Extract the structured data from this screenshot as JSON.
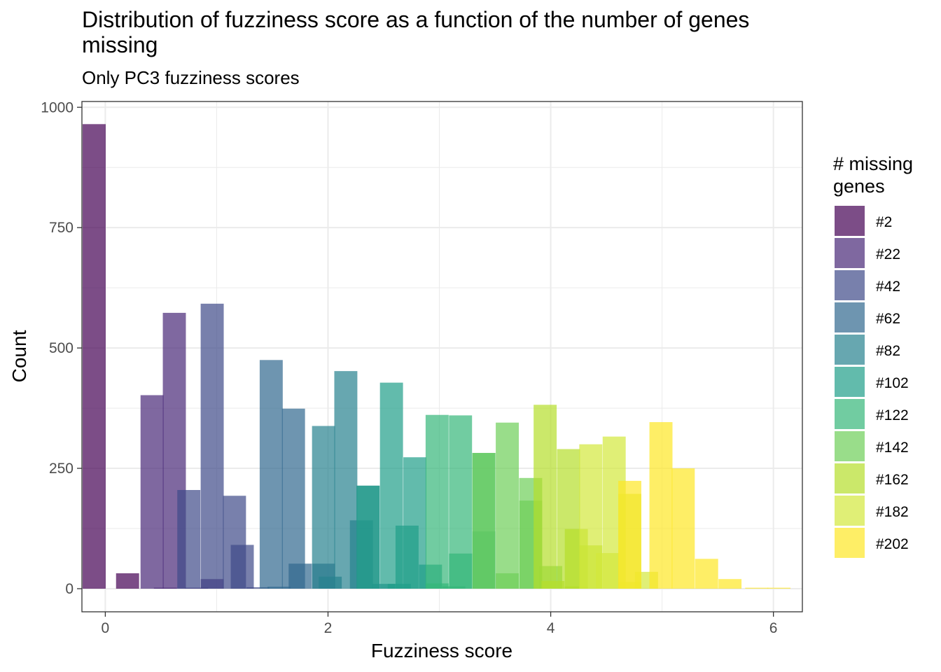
{
  "chart_data": {
    "type": "bar",
    "title": "Distribution of fuzziness score as a function of the number of genes missing",
    "subtitle": "Only PC3 fuzziness scores",
    "xlabel": "Fuzziness score",
    "ylabel": "Count",
    "xlim": [
      -0.21,
      6.26
    ],
    "ylim": [
      -48,
      1012
    ],
    "x_ticks": [
      0,
      2,
      4,
      6
    ],
    "y_ticks": [
      0,
      250,
      500,
      750,
      1000
    ],
    "bin_width": 0.207,
    "grid": true,
    "legend": {
      "title": "# missing genes",
      "position": "right",
      "entries": [
        "#2",
        "#22",
        "#42",
        "#62",
        "#82",
        "#102",
        "#122",
        "#142",
        "#162",
        "#182",
        "#202"
      ]
    },
    "series": [
      {
        "name": "#2",
        "color": "#440154",
        "bins": [
          [
            -0.1,
            965
          ],
          [
            0.2,
            32
          ]
        ]
      },
      {
        "name": "#22",
        "color": "#482878",
        "bins": [
          [
            0.42,
            402
          ],
          [
            0.62,
            573
          ],
          [
            0.82,
            2
          ],
          [
            0.54,
            2
          ],
          [
            0.96,
            20
          ]
        ]
      },
      {
        "name": "#42",
        "color": "#3E4A89",
        "bins": [
          [
            0.75,
            205
          ],
          [
            0.96,
            592
          ],
          [
            1.16,
            193
          ],
          [
            1.23,
            91
          ],
          [
            1.37,
            3
          ]
        ]
      },
      {
        "name": "#62",
        "color": "#31688E",
        "bins": [
          [
            1.49,
            475
          ],
          [
            1.69,
            374
          ],
          [
            1.75,
            52
          ],
          [
            1.56,
            4
          ],
          [
            1.96,
            52
          ]
        ]
      },
      {
        "name": "#82",
        "color": "#26828E",
        "bins": [
          [
            1.96,
            338
          ],
          [
            2.16,
            452
          ],
          [
            2.36,
            214
          ],
          [
            2.02,
            25
          ],
          [
            2.3,
            142
          ],
          [
            2.5,
            10
          ]
        ]
      },
      {
        "name": "#102",
        "color": "#1F9E89",
        "bins": [
          [
            2.36,
            214
          ],
          [
            2.57,
            428
          ],
          [
            2.78,
            273
          ],
          [
            2.71,
            131
          ],
          [
            2.92,
            50
          ],
          [
            2.64,
            10
          ]
        ]
      },
      {
        "name": "#122",
        "color": "#35B779",
        "bins": [
          [
            2.98,
            361
          ],
          [
            3.19,
            360
          ],
          [
            3.4,
            282
          ],
          [
            3.19,
            73
          ],
          [
            3.4,
            119
          ],
          [
            2.98,
            11
          ],
          [
            3.13,
            5
          ]
        ]
      },
      {
        "name": "#142",
        "color": "#6ECE58",
        "bins": [
          [
            3.4,
            282
          ],
          [
            3.61,
            345
          ],
          [
            3.82,
            230
          ],
          [
            3.61,
            32
          ],
          [
            3.82,
            183
          ],
          [
            4.0,
            47
          ]
        ]
      },
      {
        "name": "#162",
        "color": "#B5DE2B",
        "bins": [
          [
            3.95,
            382
          ],
          [
            4.16,
            290
          ],
          [
            4.02,
            16
          ],
          [
            4.23,
            124
          ],
          [
            4.36,
            90
          ],
          [
            4.23,
            5
          ]
        ]
      },
      {
        "name": "#182",
        "color": "#D3E83C",
        "bins": [
          [
            4.36,
            300
          ],
          [
            4.57,
            316
          ],
          [
            4.51,
            74
          ],
          [
            4.71,
            197
          ],
          [
            4.71,
            14
          ],
          [
            4.86,
            35
          ]
        ]
      },
      {
        "name": "#202",
        "color": "#FDE725",
        "bins": [
          [
            4.71,
            224
          ],
          [
            4.99,
            346
          ],
          [
            5.19,
            250
          ],
          [
            5.4,
            62
          ],
          [
            5.61,
            20
          ],
          [
            5.85,
            2
          ],
          [
            6.05,
            2
          ]
        ]
      }
    ]
  }
}
